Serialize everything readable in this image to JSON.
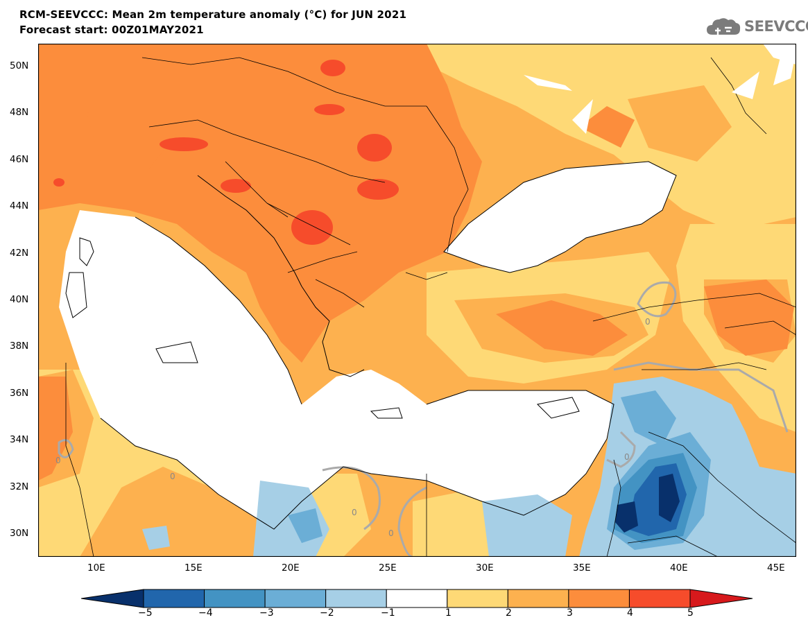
{
  "header": {
    "title": "RCM-SEEVCCC: Mean 2m temperature anomaly (°C) for JUN 2021",
    "subtitle": "Forecast start: 00Z01MAY2021"
  },
  "logo": {
    "text": "SEEVCCC"
  },
  "map": {
    "variable": "2m temperature anomaly",
    "units": "°C",
    "month": "JUN 2021",
    "lat_range": [
      29,
      51
    ],
    "lon_range": [
      7,
      46
    ],
    "lat_ticks": [
      "50N",
      "48N",
      "46N",
      "44N",
      "42N",
      "40N",
      "38N",
      "36N",
      "34N",
      "32N",
      "30N"
    ],
    "lon_ticks": [
      "10E",
      "15E",
      "20E",
      "25E",
      "30E",
      "35E",
      "40E",
      "45E"
    ],
    "contour_labels": [
      "0",
      "0",
      "0",
      "0",
      "0",
      "0"
    ]
  },
  "colorbar": {
    "ticks": [
      "−5",
      "−4",
      "−3",
      "−2",
      "−1",
      "1",
      "2",
      "3",
      "4",
      "5"
    ],
    "bins": [
      {
        "range": "< -5",
        "color": "#08306b"
      },
      {
        "range": "-5 to -4",
        "color": "#2166ac"
      },
      {
        "range": "-4 to -3",
        "color": "#4393c3"
      },
      {
        "range": "-3 to -2",
        "color": "#6baed6"
      },
      {
        "range": "-2 to -1",
        "color": "#a6cfe6"
      },
      {
        "range": "-1 to 1",
        "color": "#ffffff"
      },
      {
        "range": "1 to 2",
        "color": "#fed976"
      },
      {
        "range": "2 to 3",
        "color": "#fdb14f"
      },
      {
        "range": "3 to 4",
        "color": "#fc8d3c"
      },
      {
        "range": "4 to 5",
        "color": "#f64c2b"
      },
      {
        "range": "> 5",
        "color": "#d7191c"
      }
    ]
  }
}
